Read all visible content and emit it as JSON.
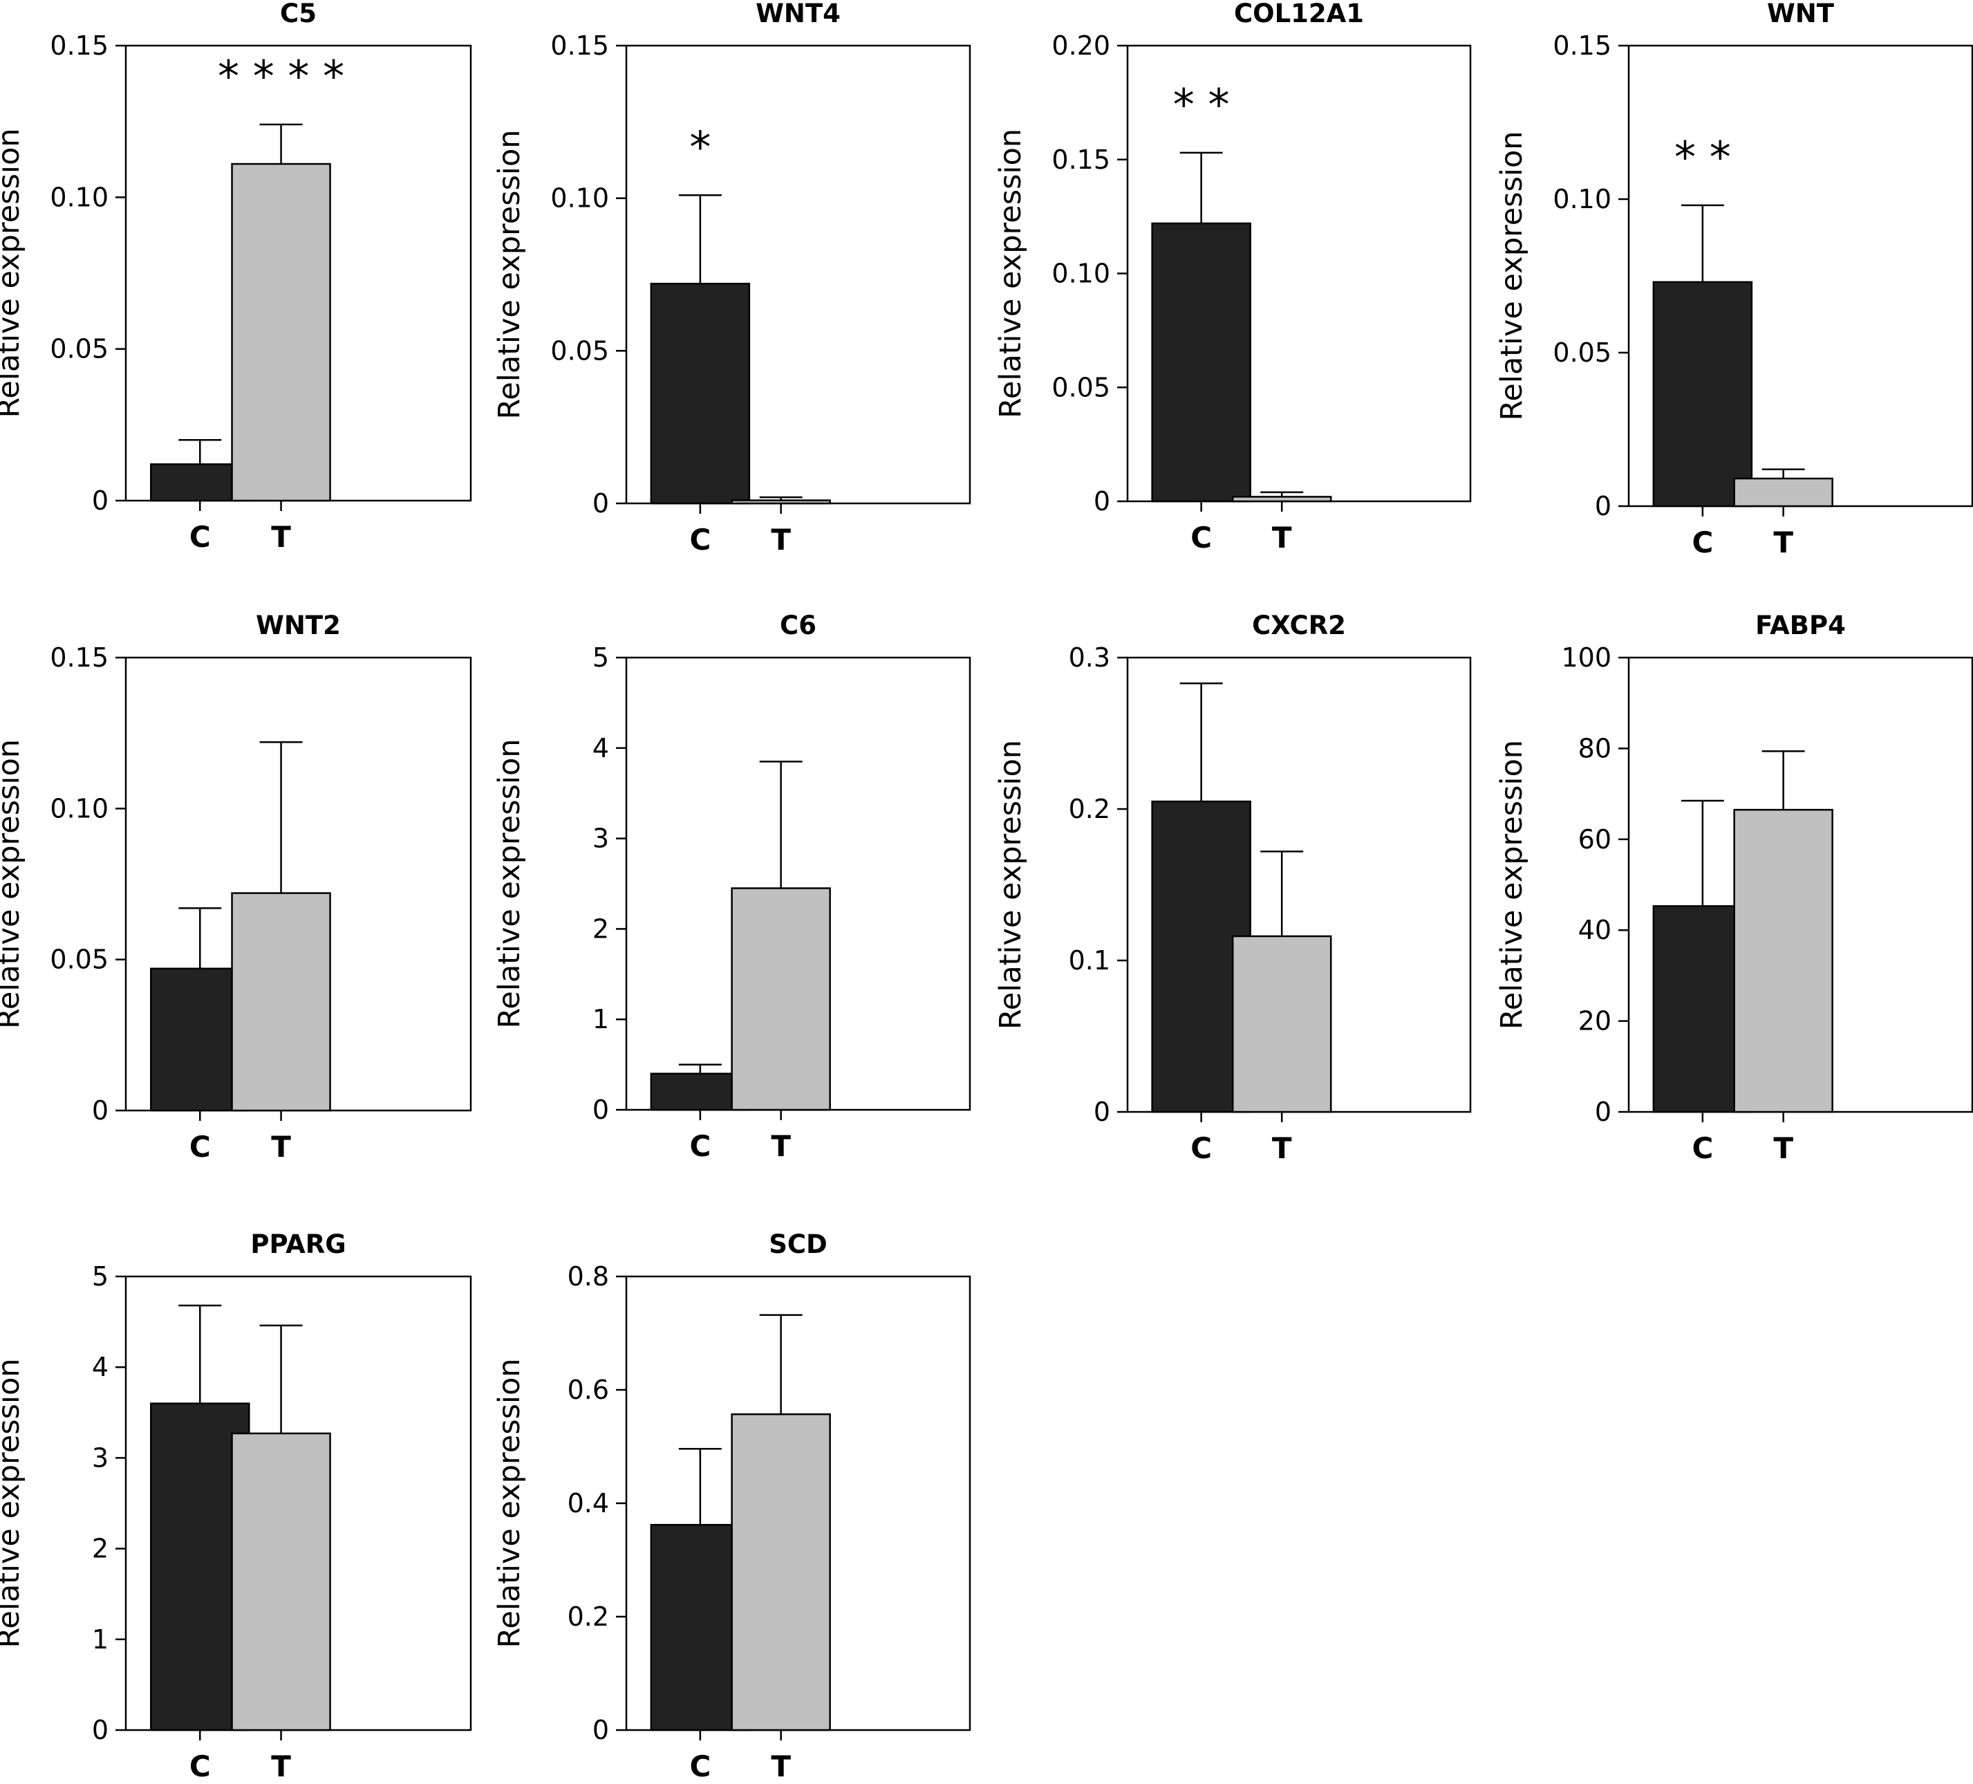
{
  "figure": {
    "background": "#ffffff"
  },
  "colors": {
    "C": "#222222",
    "T": "#c0c0c0",
    "axis": "#000000"
  },
  "chart_data": [
    {
      "type": "bar",
      "title": "C5",
      "ylabel": "Relative expression",
      "categories": [
        "C",
        "T"
      ],
      "values": [
        0.012,
        0.111
      ],
      "errors": [
        0.008,
        0.013
      ],
      "ylim": [
        0,
        0.15
      ],
      "yticks": [
        0,
        0.05,
        0.1,
        0.15
      ],
      "ytick_labels": [
        "0",
        "0.05",
        "0.10",
        "0.15"
      ],
      "annotation": "* * * *",
      "annotation_over": "T",
      "grid": false
    },
    {
      "type": "bar",
      "title": "WNT4",
      "ylabel": "Relative expression",
      "categories": [
        "C",
        "T"
      ],
      "values": [
        0.072,
        0.001
      ],
      "errors": [
        0.029,
        0.001
      ],
      "ylim": [
        0,
        0.15
      ],
      "yticks": [
        0,
        0.05,
        0.1,
        0.15
      ],
      "ytick_labels": [
        "0",
        "0.05",
        "0.10",
        "0.15"
      ],
      "annotation": "*",
      "annotation_over": "C",
      "grid": false
    },
    {
      "type": "bar",
      "title": "COL12A1",
      "ylabel": "Relative expression",
      "categories": [
        "C",
        "T"
      ],
      "values": [
        0.122,
        0.002
      ],
      "errors": [
        0.031,
        0.002
      ],
      "ylim": [
        0,
        0.2
      ],
      "yticks": [
        0,
        0.05,
        0.1,
        0.15,
        0.2
      ],
      "ytick_labels": [
        "0",
        "0.05",
        "0.10",
        "0.15",
        "0.20"
      ],
      "annotation": "* *",
      "annotation_over": "C",
      "grid": false
    },
    {
      "type": "bar",
      "title": "WNT",
      "ylabel": "Relative expression",
      "categories": [
        "C",
        "T"
      ],
      "values": [
        0.073,
        0.009
      ],
      "errors": [
        0.025,
        0.003
      ],
      "ylim": [
        0,
        0.15
      ],
      "yticks": [
        0,
        0.05,
        0.1,
        0.15
      ],
      "ytick_labels": [
        "0",
        "0.05",
        "0.10",
        "0.15"
      ],
      "annotation": "* *",
      "annotation_over": "C",
      "grid": false
    },
    {
      "type": "bar",
      "title": "WNT2",
      "ylabel": "Relative expression",
      "categories": [
        "C",
        "T"
      ],
      "values": [
        0.047,
        0.072
      ],
      "errors": [
        0.02,
        0.05
      ],
      "ylim": [
        0,
        0.15
      ],
      "yticks": [
        0,
        0.05,
        0.1,
        0.15
      ],
      "ytick_labels": [
        "0",
        "0.05",
        "0.10",
        "0.15"
      ],
      "annotation": "",
      "annotation_over": "",
      "grid": false
    },
    {
      "type": "bar",
      "title": "C6",
      "ylabel": "Relative expression",
      "categories": [
        "C",
        "T"
      ],
      "values": [
        0.4,
        2.45
      ],
      "errors": [
        0.1,
        1.4
      ],
      "ylim": [
        0,
        5
      ],
      "yticks": [
        0,
        1,
        2,
        3,
        4,
        5
      ],
      "ytick_labels": [
        "0",
        "1",
        "2",
        "3",
        "4",
        "5"
      ],
      "annotation": "",
      "annotation_over": "",
      "grid": false
    },
    {
      "type": "bar",
      "title": "CXCR2",
      "ylabel": "Relative expression",
      "categories": [
        "C",
        "T"
      ],
      "values": [
        0.205,
        0.116
      ],
      "errors": [
        0.078,
        0.056
      ],
      "ylim": [
        0,
        0.3
      ],
      "yticks": [
        0,
        0.1,
        0.2,
        0.3
      ],
      "ytick_labels": [
        "0",
        "0.1",
        "0.2",
        "0.3"
      ],
      "annotation": "",
      "annotation_over": "",
      "grid": false
    },
    {
      "type": "bar",
      "title": "FABP4",
      "ylabel": "Relative expression",
      "categories": [
        "C",
        "T"
      ],
      "values": [
        45.3,
        66.5
      ],
      "errors": [
        23.2,
        12.9
      ],
      "ylim": [
        0,
        100
      ],
      "yticks": [
        0,
        20,
        40,
        60,
        80,
        100
      ],
      "ytick_labels": [
        "0",
        "20",
        "40",
        "60",
        "80",
        "100"
      ],
      "annotation": "",
      "annotation_over": "",
      "grid": false
    },
    {
      "type": "bar",
      "title": "PPARG",
      "ylabel": "Relative expression",
      "categories": [
        "C",
        "T"
      ],
      "values": [
        3.6,
        3.27
      ],
      "errors": [
        1.08,
        1.19
      ],
      "ylim": [
        0,
        5
      ],
      "yticks": [
        0,
        1,
        2,
        3,
        4,
        5
      ],
      "ytick_labels": [
        "0",
        "1",
        "2",
        "3",
        "4",
        "5"
      ],
      "annotation": "",
      "annotation_over": "",
      "grid": false
    },
    {
      "type": "bar",
      "title": "SCD",
      "ylabel": "Relative expression",
      "categories": [
        "C",
        "T"
      ],
      "values": [
        0.362,
        0.557
      ],
      "errors": [
        0.134,
        0.175
      ],
      "ylim": [
        0,
        0.8
      ],
      "yticks": [
        0,
        0.2,
        0.4,
        0.6,
        0.8
      ],
      "ytick_labels": [
        "0",
        "0.2",
        "0.4",
        "0.6",
        "0.8"
      ],
      "annotation": "",
      "annotation_over": "",
      "grid": false
    }
  ]
}
